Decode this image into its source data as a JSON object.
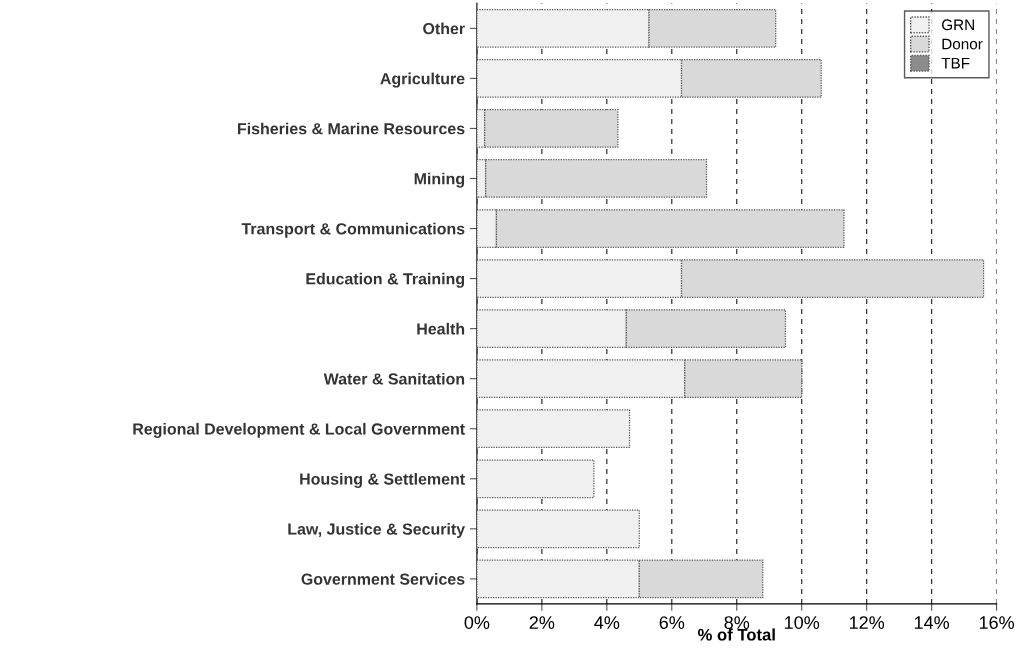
{
  "chart_data": {
    "type": "bar",
    "orientation": "horizontal",
    "stacked": true,
    "xlabel": "% of Total",
    "categories": [
      "Other",
      "Agriculture",
      "Fisheries & Marine Resources",
      "Mining",
      "Transport & Communications",
      "Education & Training",
      "Health",
      "Water & Sanitation",
      "Regional Development & Local Government",
      "Housing & Settlement",
      "Law, Justice & Security",
      "Government Services"
    ],
    "series": [
      {
        "name": "GRN",
        "color": "#f0f0f0",
        "values": [
          5.3,
          6.3,
          0.24,
          0.27,
          0.6,
          6.3,
          4.6,
          6.4,
          4.7,
          3.6,
          5.0,
          5.0
        ]
      },
      {
        "name": "Donor",
        "color": "#d9d9d9",
        "values": [
          3.9,
          4.3,
          4.1,
          6.8,
          10.7,
          9.3,
          4.9,
          3.6,
          null,
          null,
          null,
          3.8
        ]
      },
      {
        "name": "TBF",
        "color": "#8c8c8c",
        "values": [
          null,
          null,
          null,
          null,
          null,
          null,
          null,
          null,
          null,
          null,
          null,
          null
        ]
      }
    ],
    "xlim": [
      0,
      16
    ],
    "xticks": [
      {
        "value": 0,
        "label": "0%"
      },
      {
        "value": 2,
        "label": "2%"
      },
      {
        "value": 4,
        "label": "4%"
      },
      {
        "value": 6,
        "label": "6%"
      },
      {
        "value": 8,
        "label": "8%"
      },
      {
        "value": 10,
        "label": "10%"
      },
      {
        "value": 12,
        "label": "12%"
      },
      {
        "value": 14,
        "label": "14%"
      },
      {
        "value": 16,
        "label": "16%"
      }
    ],
    "grid": "x",
    "legend": "top right"
  }
}
